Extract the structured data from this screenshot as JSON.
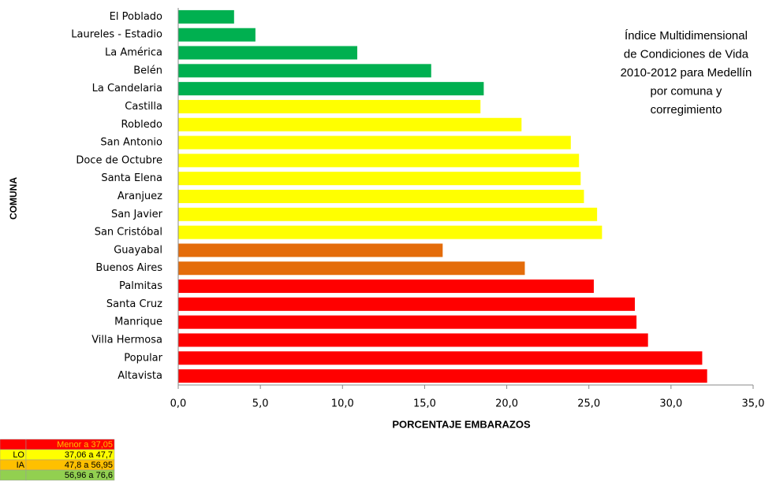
{
  "chart_data": {
    "type": "barh",
    "annotation": [
      "Índice Multidimensional",
      "de Condiciones de Vida",
      "2010-2012 para Medellín",
      "por comuna y",
      "corregimiento"
    ],
    "xlabel": "PORCENTAJE EMBARAZOS",
    "ylabel": "COMUNA",
    "categories": [
      "El Poblado",
      "Laureles - Estadio",
      "La América",
      "Belén",
      "La Candelaria",
      "Castilla",
      "Robledo",
      "San Antonio",
      "Doce de Octubre",
      "Santa Elena",
      "Aranjuez",
      "San Javier",
      "San Cristóbal",
      "Guayabal",
      "Buenos Aires",
      "Palmitas",
      "Santa Cruz",
      "Manrique",
      "Villa Hermosa",
      "Popular",
      "Altavista"
    ],
    "values": [
      3.4,
      4.7,
      10.9,
      15.4,
      18.6,
      18.4,
      20.9,
      23.9,
      24.4,
      24.5,
      24.7,
      25.5,
      25.8,
      16.1,
      21.1,
      25.3,
      27.8,
      27.9,
      28.6,
      31.9,
      32.2
    ],
    "colors": [
      "#00b050",
      "#00b050",
      "#00b050",
      "#00b050",
      "#00b050",
      "#ffff00",
      "#ffff00",
      "#ffff00",
      "#ffff00",
      "#ffff00",
      "#ffff00",
      "#ffff00",
      "#ffff00",
      "#e46c0a",
      "#e46c0a",
      "#ff0000",
      "#ff0000",
      "#ff0000",
      "#ff0000",
      "#ff0000",
      "#ff0000"
    ],
    "xlim": [
      0,
      35
    ],
    "xticks": [
      {
        "value": 0,
        "label": "0,0"
      },
      {
        "value": 5,
        "label": "5,0"
      },
      {
        "value": 10,
        "label": "10,0"
      },
      {
        "value": 15,
        "label": "15,0"
      },
      {
        "value": 20,
        "label": "20,0"
      },
      {
        "value": 25,
        "label": "25,0"
      },
      {
        "value": 30,
        "label": "30,0"
      },
      {
        "value": 35,
        "label": "35,0"
      }
    ]
  },
  "legend_table": {
    "rows": [
      {
        "color": "#ff0000",
        "range": "Menor a 37,05"
      },
      {
        "color": "#ffff00",
        "label": "LO",
        "range": "37,06 a 47,7"
      },
      {
        "color": "#ffc000",
        "label": "IA",
        "range": "47,8 a 56,95"
      },
      {
        "color": "#92d050",
        "range": "56,96 a 76,6"
      }
    ]
  }
}
